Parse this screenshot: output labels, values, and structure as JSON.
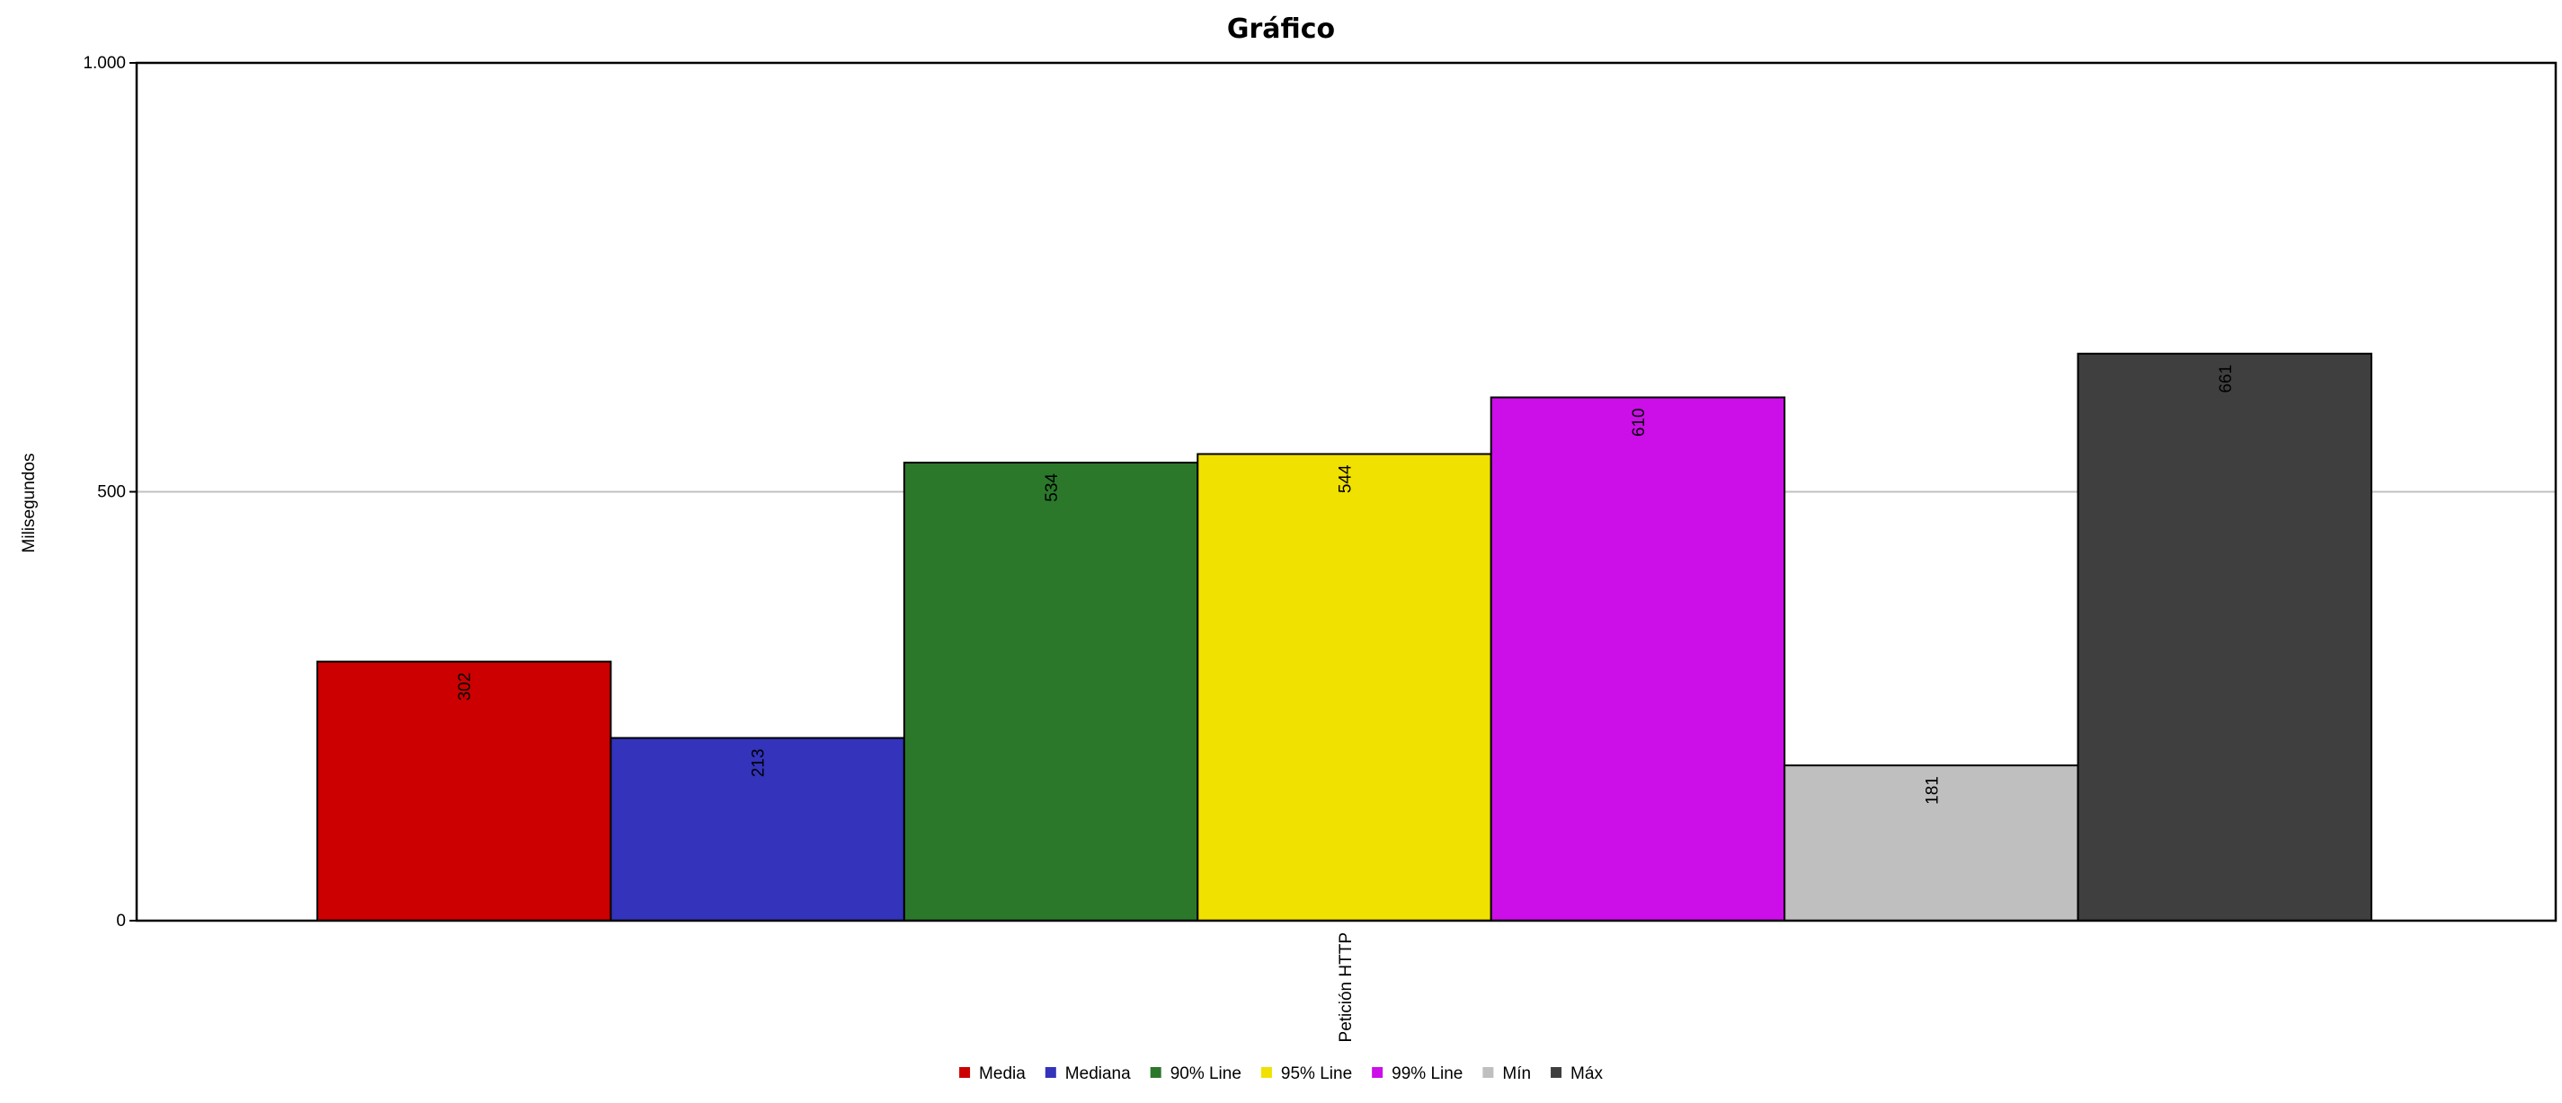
{
  "chart_data": {
    "type": "bar",
    "title": "Gráfico",
    "xlabel": "",
    "ylabel": "Milisegundos",
    "categories": [
      "Petición HTTP"
    ],
    "ylim": [
      0,
      1000
    ],
    "yticks": [
      {
        "value": 0,
        "label": "0"
      },
      {
        "value": 500,
        "label": "500"
      },
      {
        "value": 1000,
        "label": "1.000"
      }
    ],
    "grid": true,
    "legend": "bottom",
    "series": [
      {
        "name": "Media",
        "values": [
          302
        ],
        "color": "#cc0000"
      },
      {
        "name": "Mediana",
        "values": [
          213
        ],
        "color": "#3333bb"
      },
      {
        "name": "90% Line",
        "values": [
          534
        ],
        "color": "#2b782b"
      },
      {
        "name": "95% Line",
        "values": [
          544
        ],
        "color": "#f0e100"
      },
      {
        "name": "99% Line",
        "values": [
          610
        ],
        "color": "#cc0ee9"
      },
      {
        "name": "Mín",
        "values": [
          181
        ],
        "color": "#bfbfbf"
      },
      {
        "name": "Máx",
        "values": [
          661
        ],
        "color": "#3f3f3f"
      }
    ]
  }
}
